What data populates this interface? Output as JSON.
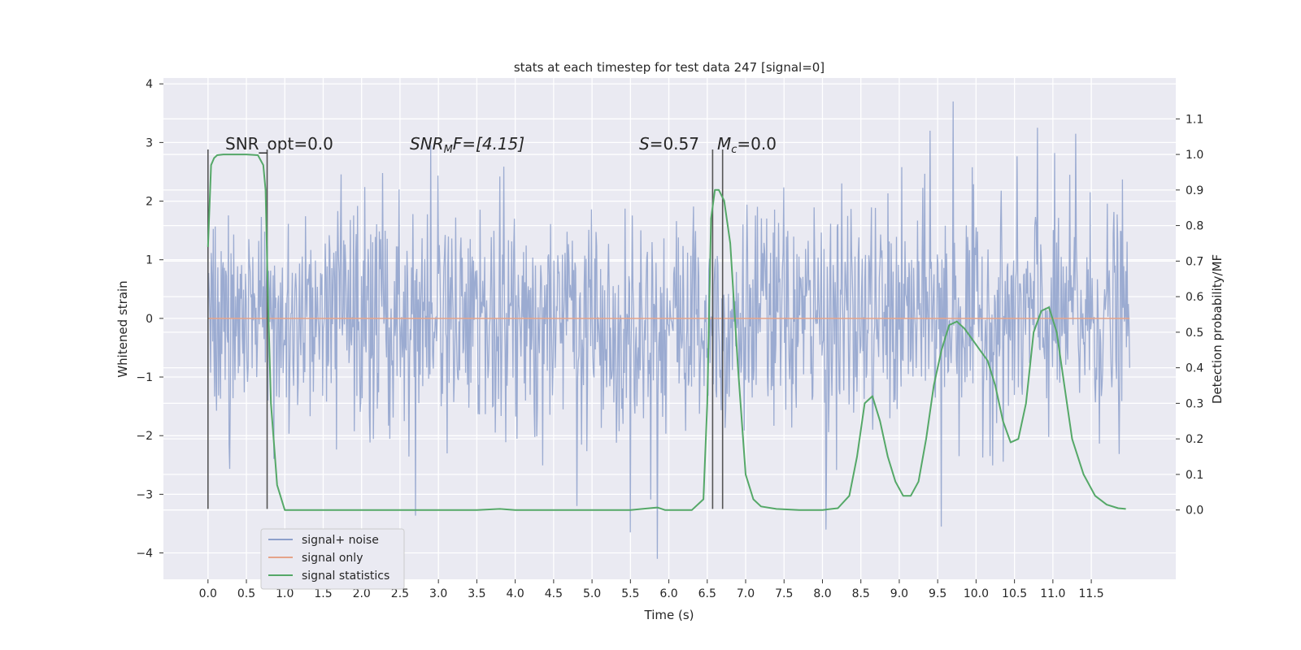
{
  "chart_data": {
    "type": "line",
    "title": "stats at each timestep for test data 247 [signal=0]",
    "xlabel": "Time (s)",
    "ylabel": "Whitened strain",
    "y2label": "Detection probability/MF",
    "xlim": [
      -0.58,
      12.6
    ],
    "ylim": [
      -4.45,
      4.1
    ],
    "y2lim": [
      -0.195,
      1.215
    ],
    "x_ticks": [
      0.0,
      0.5,
      1.0,
      1.5,
      2.0,
      2.5,
      3.0,
      3.5,
      4.0,
      4.5,
      5.0,
      5.5,
      6.0,
      6.5,
      7.0,
      7.5,
      8.0,
      8.5,
      9.0,
      9.5,
      10.0,
      10.5,
      11.0,
      11.5
    ],
    "x_tick_labels": [
      "0.0",
      "0.5",
      "1.0",
      "1.5",
      "2.0",
      "2.5",
      "3.0",
      "3.5",
      "4.0",
      "4.5",
      "5.0",
      "5.5",
      "6.0",
      "6.5",
      "7.0",
      "7.5",
      "8.0",
      "8.5",
      "9.0",
      "9.5",
      "10.0",
      "10.5",
      "11.0",
      "11.5"
    ],
    "y_ticks": [
      -4,
      -3,
      -2,
      -1,
      0,
      1,
      2,
      3,
      4
    ],
    "y_tick_labels": [
      "−4",
      "−3",
      "−2",
      "−1",
      "0",
      "1",
      "2",
      "3",
      "4"
    ],
    "y2_ticks": [
      0.0,
      0.1,
      0.2,
      0.3,
      0.4,
      0.5,
      0.6,
      0.7,
      0.8,
      0.9,
      1.0,
      1.1
    ],
    "y2_tick_labels": [
      "0.0",
      "0.1",
      "0.2",
      "0.3",
      "0.4",
      "0.5",
      "0.6",
      "0.7",
      "0.8",
      "0.9",
      "1.0",
      "1.1"
    ],
    "grid": true,
    "legend_position": "lower-left",
    "annotations": {
      "snr_opt": "SNR_opt=0.0",
      "snr_mf_main": "SNR",
      "snr_mf_sub": "M",
      "snr_mf_rest": "F=[4.15]",
      "s_var": "S",
      "s_rest": "=0.57",
      "mc_var": "M",
      "mc_sub": "c",
      "mc_rest": "=0.0"
    },
    "vertical_lines_x": [
      0.0,
      0.77,
      6.57,
      6.7
    ],
    "series": [
      {
        "name": "signal+ noise",
        "color": "#8da0cb",
        "x_range": [
          0.0,
          12.0
        ],
        "envelope_core": [
          -1.2,
          1.15
        ],
        "peaks_positive": [
          [
            9.7,
            3.7
          ],
          [
            10.8,
            3.25
          ],
          [
            9.4,
            3.2
          ],
          [
            11.3,
            3.15
          ],
          [
            2.9,
            2.95
          ],
          [
            4.8,
            2.95
          ]
        ],
        "peaks_negative": [
          [
            5.85,
            -4.1
          ],
          [
            5.5,
            -3.65
          ],
          [
            8.05,
            -3.6
          ],
          [
            9.55,
            -3.55
          ],
          [
            4.8,
            -3.2
          ]
        ]
      },
      {
        "name": "signal only",
        "color": "#e5a48a",
        "x": [
          0.0,
          12.0
        ],
        "y": [
          0.0,
          0.0
        ]
      },
      {
        "name": "signal statistics",
        "color": "#55a868",
        "axis": "right",
        "x": [
          0.0,
          0.04,
          0.08,
          0.12,
          0.2,
          0.3,
          0.5,
          0.65,
          0.72,
          0.75,
          0.78,
          0.82,
          0.9,
          1.0,
          1.5,
          2.0,
          2.5,
          3.0,
          3.5,
          3.8,
          4.0,
          4.5,
          5.0,
          5.5,
          5.75,
          5.85,
          5.95,
          6.1,
          6.3,
          6.45,
          6.5,
          6.55,
          6.6,
          6.65,
          6.72,
          6.8,
          6.9,
          7.0,
          7.1,
          7.2,
          7.4,
          7.7,
          8.0,
          8.2,
          8.35,
          8.45,
          8.55,
          8.65,
          8.75,
          8.85,
          8.95,
          9.05,
          9.15,
          9.25,
          9.35,
          9.45,
          9.55,
          9.65,
          9.75,
          9.85,
          9.95,
          10.05,
          10.15,
          10.25,
          10.35,
          10.45,
          10.55,
          10.65,
          10.75,
          10.85,
          10.95,
          11.05,
          11.15,
          11.25,
          11.4,
          11.55,
          11.7,
          11.85,
          11.95
        ],
        "y": [
          0.74,
          0.97,
          0.99,
          0.998,
          1.0,
          1.0,
          1.0,
          0.998,
          0.97,
          0.9,
          0.6,
          0.3,
          0.07,
          0.0,
          0.0,
          0.0,
          0.0,
          0.0,
          0.0,
          0.003,
          0.0,
          0.0,
          0.0,
          0.0,
          0.005,
          0.007,
          0.0,
          0.0,
          0.0,
          0.03,
          0.3,
          0.82,
          0.9,
          0.9,
          0.87,
          0.75,
          0.4,
          0.1,
          0.03,
          0.01,
          0.003,
          0.0,
          0.0,
          0.005,
          0.04,
          0.15,
          0.3,
          0.32,
          0.25,
          0.15,
          0.08,
          0.04,
          0.04,
          0.08,
          0.2,
          0.35,
          0.45,
          0.52,
          0.53,
          0.51,
          0.48,
          0.45,
          0.42,
          0.35,
          0.25,
          0.19,
          0.2,
          0.3,
          0.5,
          0.56,
          0.57,
          0.5,
          0.35,
          0.2,
          0.1,
          0.04,
          0.015,
          0.005,
          0.003
        ]
      }
    ]
  }
}
